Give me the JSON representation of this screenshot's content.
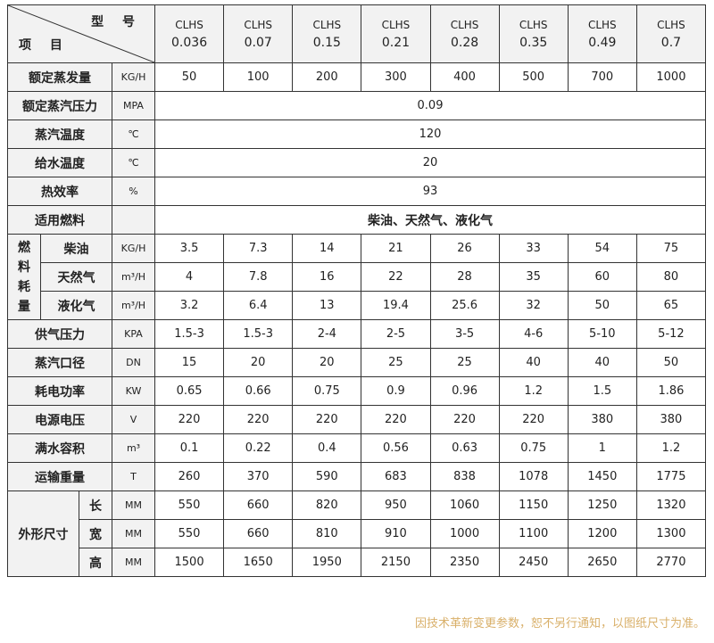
{
  "header": {
    "model_label": "型 号",
    "item_label": "项 目"
  },
  "models": [
    [
      "CLHS",
      "0.036"
    ],
    [
      "CLHS",
      "0.07"
    ],
    [
      "CLHS",
      "0.15"
    ],
    [
      "CLHS",
      "0.21"
    ],
    [
      "CLHS",
      "0.28"
    ],
    [
      "CLHS",
      "0.35"
    ],
    [
      "CLHS",
      "0.49"
    ],
    [
      "CLHS",
      "0.7"
    ]
  ],
  "rows_top": [
    {
      "label": "额定蒸发量",
      "unit": "KG/H",
      "values": [
        "50",
        "100",
        "200",
        "300",
        "400",
        "500",
        "700",
        "1000"
      ]
    },
    {
      "label": "额定蒸汽压力",
      "unit": "MPA",
      "merged": "0.09"
    },
    {
      "label": "蒸汽温度",
      "unit": "℃",
      "merged": "120"
    },
    {
      "label": "给水温度",
      "unit": "℃",
      "merged": "20"
    },
    {
      "label": "热效率",
      "unit": "%",
      "merged": "93"
    },
    {
      "label": "适用燃料",
      "unit": "",
      "merged": "柴油、天然气、液化气"
    }
  ],
  "fuel": {
    "group_label": "燃料耗量",
    "rows": [
      {
        "label": "柴油",
        "unit": "KG/H",
        "values": [
          "3.5",
          "7.3",
          "14",
          "21",
          "26",
          "33",
          "54",
          "75"
        ]
      },
      {
        "label": "天然气",
        "unit": "m³/H",
        "values": [
          "4",
          "7.8",
          "16",
          "22",
          "28",
          "35",
          "60",
          "80"
        ]
      },
      {
        "label": "液化气",
        "unit": "m³/H",
        "values": [
          "3.2",
          "6.4",
          "13",
          "19.4",
          "25.6",
          "32",
          "50",
          "65"
        ]
      }
    ]
  },
  "rows_mid": [
    {
      "label": "供气压力",
      "unit": "KPA",
      "values": [
        "1.5-3",
        "1.5-3",
        "2-4",
        "2-5",
        "3-5",
        "4-6",
        "5-10",
        "5-12"
      ]
    },
    {
      "label": "蒸汽口径",
      "unit": "DN",
      "values": [
        "15",
        "20",
        "20",
        "25",
        "25",
        "40",
        "40",
        "50"
      ]
    },
    {
      "label": "耗电功率",
      "unit": "KW",
      "values": [
        "0.65",
        "0.66",
        "0.75",
        "0.9",
        "0.96",
        "1.2",
        "1.5",
        "1.86"
      ]
    },
    {
      "label": "电源电压",
      "unit": "V",
      "values": [
        "220",
        "220",
        "220",
        "220",
        "220",
        "220",
        "380",
        "380"
      ]
    },
    {
      "label": "满水容积",
      "unit": "m³",
      "values": [
        "0.1",
        "0.22",
        "0.4",
        "0.56",
        "0.63",
        "0.75",
        "1",
        "1.2"
      ]
    },
    {
      "label": "运输重量",
      "unit": "T",
      "values": [
        "260",
        "370",
        "590",
        "683",
        "838",
        "1078",
        "1450",
        "1775"
      ]
    }
  ],
  "dims": {
    "group_label": "外形尺寸",
    "rows": [
      {
        "label": "长",
        "unit": "MM",
        "values": [
          "550",
          "660",
          "820",
          "950",
          "1060",
          "1150",
          "1250",
          "1320"
        ]
      },
      {
        "label": "宽",
        "unit": "MM",
        "values": [
          "550",
          "660",
          "810",
          "910",
          "1000",
          "1100",
          "1200",
          "1300"
        ]
      },
      {
        "label": "高",
        "unit": "MM",
        "values": [
          "1500",
          "1650",
          "1950",
          "2150",
          "2350",
          "2450",
          "2650",
          "2770"
        ]
      }
    ]
  },
  "footnote": "因技术革新变更参数，恕不另行通知，以图纸尺寸为准。",
  "colors": {
    "header_bg": "#f2f2f2",
    "border": "#333333",
    "footnote": "#d9b06a"
  }
}
